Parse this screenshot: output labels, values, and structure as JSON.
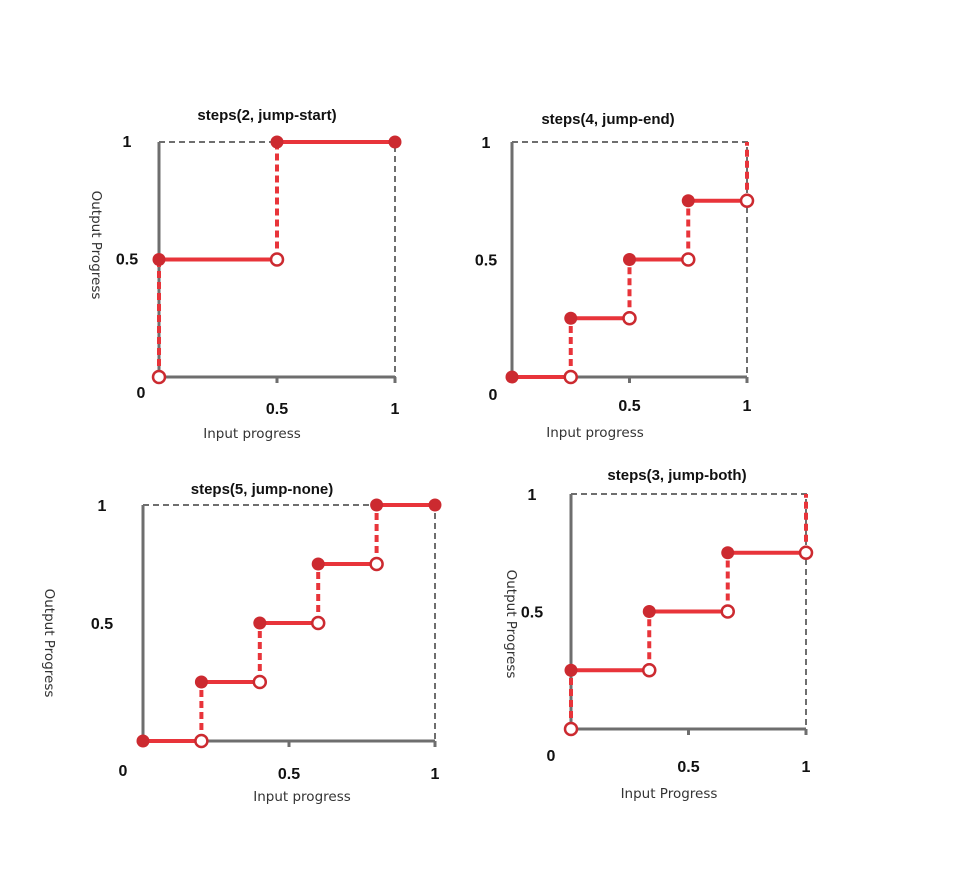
{
  "chart_data": [
    {
      "type": "line",
      "title": "steps(2, jump-start)",
      "xlabel": "Input progress",
      "ylabel": "Output Progress",
      "x_ticks": [
        "0.5",
        "1"
      ],
      "y_ticks": [
        "1",
        "0.5"
      ],
      "origin_label": "0",
      "xlim": [
        0,
        1
      ],
      "ylim": [
        0,
        1
      ],
      "steps": 2,
      "jump": "jump-start",
      "segments": [
        {
          "x": [
            0,
            0.5
          ],
          "y": 0.5
        },
        {
          "x": [
            0.5,
            1
          ],
          "y": 1
        }
      ],
      "filled_points": [
        [
          0,
          0.5
        ],
        [
          0.5,
          1
        ],
        [
          1,
          1
        ]
      ],
      "open_points": [
        [
          0,
          0
        ],
        [
          0.5,
          0.5
        ]
      ],
      "jumps": [
        [
          0,
          0,
          0.5
        ],
        [
          0.5,
          0.5,
          1
        ]
      ]
    },
    {
      "type": "line",
      "title": "steps(4, jump-end)",
      "xlabel": "Input progress",
      "ylabel": "",
      "x_ticks": [
        "0.5",
        "1"
      ],
      "y_ticks": [
        "1",
        "0.5"
      ],
      "origin_label": "0",
      "xlim": [
        0,
        1
      ],
      "ylim": [
        0,
        1
      ],
      "steps": 4,
      "jump": "jump-end",
      "segments": [
        {
          "x": [
            0,
            0.25
          ],
          "y": 0
        },
        {
          "x": [
            0.25,
            0.5
          ],
          "y": 0.25
        },
        {
          "x": [
            0.5,
            0.75
          ],
          "y": 0.5
        },
        {
          "x": [
            0.75,
            1
          ],
          "y": 0.75
        }
      ],
      "filled_points": [
        [
          0,
          0
        ],
        [
          0.25,
          0.25
        ],
        [
          0.5,
          0.5
        ],
        [
          0.75,
          0.75
        ]
      ],
      "open_points": [
        [
          0.25,
          0
        ],
        [
          0.5,
          0.25
        ],
        [
          0.75,
          0.5
        ],
        [
          1,
          0.75
        ]
      ],
      "jumps": [
        [
          0.25,
          0,
          0.25
        ],
        [
          0.5,
          0.25,
          0.5
        ],
        [
          0.75,
          0.5,
          0.75
        ],
        [
          1,
          0.75,
          1
        ]
      ]
    },
    {
      "type": "line",
      "title": "steps(5, jump-none)",
      "xlabel": "Input progress",
      "ylabel": "Output Progress",
      "x_ticks": [
        "0.5",
        "1"
      ],
      "y_ticks": [
        "1",
        "0.5"
      ],
      "origin_label": "0",
      "xlim": [
        0,
        1
      ],
      "ylim": [
        0,
        1
      ],
      "steps": 5,
      "jump": "jump-none",
      "segments": [
        {
          "x": [
            0,
            0.2
          ],
          "y": 0
        },
        {
          "x": [
            0.2,
            0.4
          ],
          "y": 0.25
        },
        {
          "x": [
            0.4,
            0.6
          ],
          "y": 0.5
        },
        {
          "x": [
            0.6,
            0.8
          ],
          "y": 0.75
        },
        {
          "x": [
            0.8,
            1
          ],
          "y": 1
        }
      ],
      "filled_points": [
        [
          0,
          0
        ],
        [
          0.2,
          0.25
        ],
        [
          0.4,
          0.5
        ],
        [
          0.6,
          0.75
        ],
        [
          0.8,
          1
        ],
        [
          1,
          1
        ]
      ],
      "open_points": [
        [
          0.2,
          0
        ],
        [
          0.4,
          0.25
        ],
        [
          0.6,
          0.5
        ],
        [
          0.8,
          0.75
        ]
      ],
      "jumps": [
        [
          0.2,
          0,
          0.25
        ],
        [
          0.4,
          0.25,
          0.5
        ],
        [
          0.6,
          0.5,
          0.75
        ],
        [
          0.8,
          0.75,
          1
        ]
      ]
    },
    {
      "type": "line",
      "title": "steps(3, jump-both)",
      "xlabel": "Input Progress",
      "ylabel": "Output Progress",
      "x_ticks": [
        "0.5",
        "1"
      ],
      "y_ticks": [
        "1",
        "0.5"
      ],
      "origin_label": "0",
      "xlim": [
        0,
        1
      ],
      "ylim": [
        0,
        1
      ],
      "steps": 3,
      "jump": "jump-both",
      "segments": [
        {
          "x": [
            0,
            0.333
          ],
          "y": 0.25
        },
        {
          "x": [
            0.333,
            0.667
          ],
          "y": 0.5
        },
        {
          "x": [
            0.667,
            1
          ],
          "y": 0.75
        }
      ],
      "filled_points": [
        [
          0,
          0.25
        ],
        [
          0.333,
          0.5
        ],
        [
          0.667,
          0.75
        ]
      ],
      "open_points": [
        [
          0,
          0
        ],
        [
          0.333,
          0.25
        ],
        [
          0.667,
          0.5
        ],
        [
          1,
          0.75
        ]
      ],
      "jumps": [
        [
          0,
          0,
          0.25
        ],
        [
          0.333,
          0.25,
          0.5
        ],
        [
          0.667,
          0.5,
          0.75
        ],
        [
          1,
          0.75,
          1
        ]
      ]
    }
  ],
  "colors": {
    "step_line": "#e8343a",
    "point": "#cc2a30",
    "axis": "#6e6e6e"
  }
}
